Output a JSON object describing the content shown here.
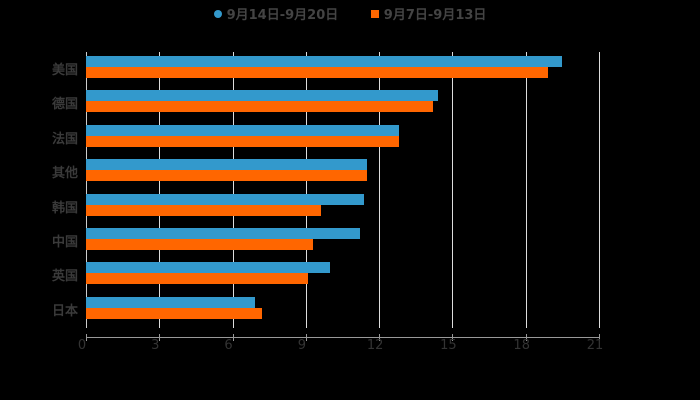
{
  "chart_data": {
    "type": "bar",
    "orientation": "horizontal",
    "title": "",
    "xlabel": "",
    "ylabel": "",
    "xlim": [
      0,
      21
    ],
    "xticks": [
      0,
      3,
      6,
      9,
      12,
      15,
      18,
      21
    ],
    "grid": true,
    "legend_position": "top",
    "categories": [
      "美国",
      "德国",
      "法国",
      "其他",
      "韩国",
      "中国",
      "英国",
      "日本"
    ],
    "series": [
      {
        "name": "9月14日-9月20日",
        "color": "#3399cc",
        "values": [
          19.5,
          14.4,
          12.8,
          11.5,
          11.4,
          11.2,
          10.0,
          6.9
        ]
      },
      {
        "name": "9月7日-9月13日",
        "color": "#ff6600",
        "values": [
          18.9,
          14.2,
          12.8,
          11.5,
          9.6,
          9.3,
          9.1,
          7.2
        ]
      }
    ]
  },
  "legend": {
    "series0": "9月14日-9月20日",
    "series1": "9月7日-9月13日"
  }
}
